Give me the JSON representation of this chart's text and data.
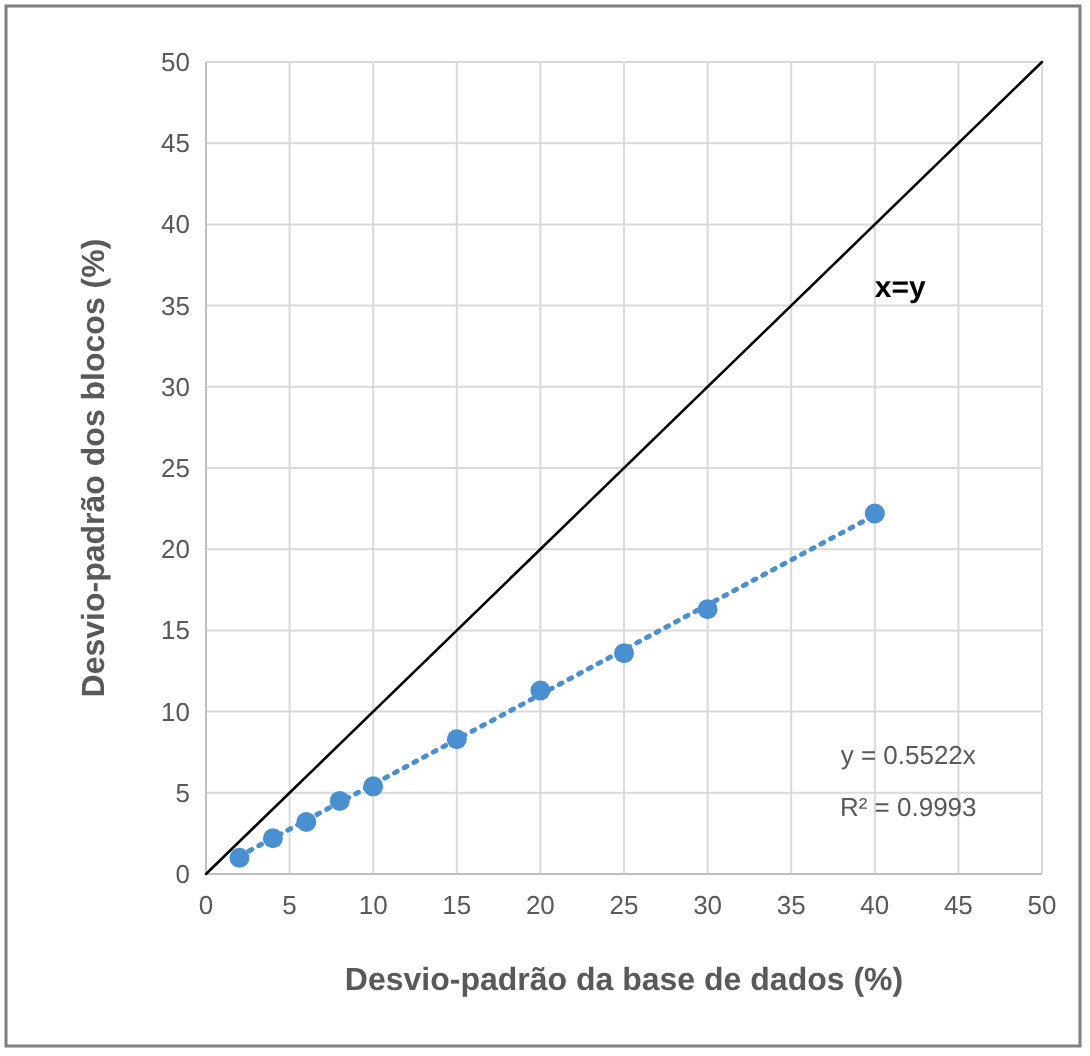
{
  "chart_data": {
    "type": "scatter",
    "xlabel": "Desvio-padrão da base de dados (%)",
    "ylabel": "Desvio-padrão dos blocos (%)",
    "xlim": [
      0,
      50
    ],
    "ylim": [
      0,
      50
    ],
    "xticks": [
      0,
      5,
      10,
      15,
      20,
      25,
      30,
      35,
      40,
      45,
      50
    ],
    "yticks": [
      0,
      5,
      10,
      15,
      20,
      25,
      30,
      35,
      40,
      45,
      50
    ],
    "grid": true,
    "series": [
      {
        "type": "line",
        "color": "#000000",
        "x": [
          0,
          50
        ],
        "values": [
          0,
          50
        ],
        "line_style": "solid"
      },
      {
        "type": "line",
        "color": "#4a90d0",
        "x": [
          2,
          40
        ],
        "values": [
          1.1,
          22.1
        ],
        "line_style": "dotted"
      },
      {
        "color": "#4a90d0",
        "marker": "circle",
        "x": [
          2,
          4,
          6,
          8,
          10,
          15,
          20,
          25,
          30,
          40
        ],
        "values": [
          1.0,
          2.2,
          3.2,
          4.5,
          5.4,
          8.3,
          11.3,
          13.6,
          16.3,
          22.2
        ]
      }
    ],
    "annotations": [
      "x=y",
      "y = 0.5522x",
      "R² = 0.9993"
    ]
  }
}
